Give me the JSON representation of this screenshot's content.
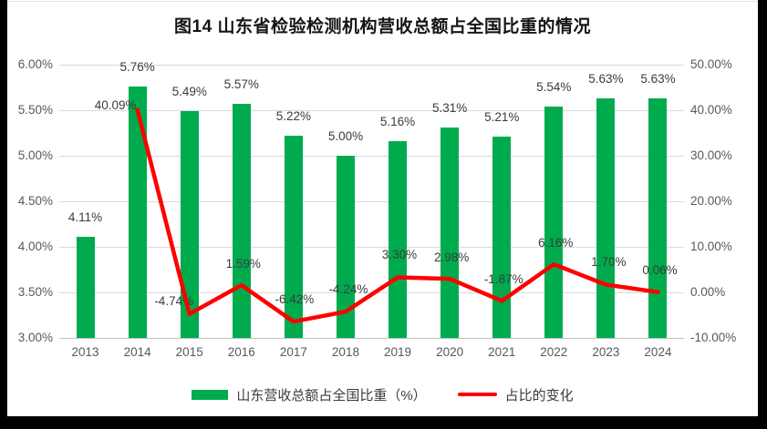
{
  "title": "图14  山东省检验检测机构营收总额占全国比重的情况",
  "colors": {
    "bar_green": "#00AB4E",
    "line_red": "#FE0000",
    "gridline": "#D9D9D9",
    "axis_text": "#595959",
    "data_label": "#3B3B3B"
  },
  "chart_data": {
    "type": "bar+line combo",
    "title": "图14  山东省检验检测机构营收总额占全国比重的情况",
    "categories": [
      "2013",
      "2014",
      "2015",
      "2016",
      "2017",
      "2018",
      "2019",
      "2020",
      "2021",
      "2022",
      "2023",
      "2024"
    ],
    "series": [
      {
        "name": "山东营收总额占全国比重（%）",
        "type": "bar",
        "axis": "left",
        "color": "#00AB4E",
        "values": [
          4.11,
          5.76,
          5.49,
          5.57,
          5.22,
          5.0,
          5.16,
          5.31,
          5.21,
          5.54,
          5.63,
          5.63
        ],
        "labels": [
          "4.11%",
          "5.76%",
          "5.49%",
          "5.57%",
          "5.22%",
          "5.00%",
          "5.16%",
          "5.31%",
          "5.21%",
          "5.54%",
          "5.63%",
          "5.63%"
        ]
      },
      {
        "name": "占比的变化",
        "type": "line",
        "axis": "right",
        "color": "#FE0000",
        "values": [
          null,
          40.09,
          -4.74,
          1.59,
          -6.42,
          -4.24,
          3.3,
          2.98,
          -1.87,
          6.16,
          1.7,
          0.06
        ],
        "labels": [
          null,
          "40.09%",
          "-4.74%",
          "1.59%",
          "-6.42%",
          "-4.24%",
          "3.30%",
          "2.98%",
          "-1.87%",
          "6.16%",
          "1.70%",
          "0.06%"
        ]
      }
    ],
    "left_axis": {
      "min": 3.0,
      "max": 6.0,
      "step": 0.5,
      "tick_labels": [
        "3.00%",
        "3.50%",
        "4.00%",
        "4.50%",
        "5.00%",
        "5.50%",
        "6.00%"
      ]
    },
    "right_axis": {
      "min": -10,
      "max": 50,
      "step": 10,
      "tick_labels": [
        "-10.00%",
        "0.00%",
        "10.00%",
        "20.00%",
        "30.00%",
        "40.00%",
        "50.00%"
      ]
    },
    "grid": true,
    "legend_position": "bottom"
  }
}
